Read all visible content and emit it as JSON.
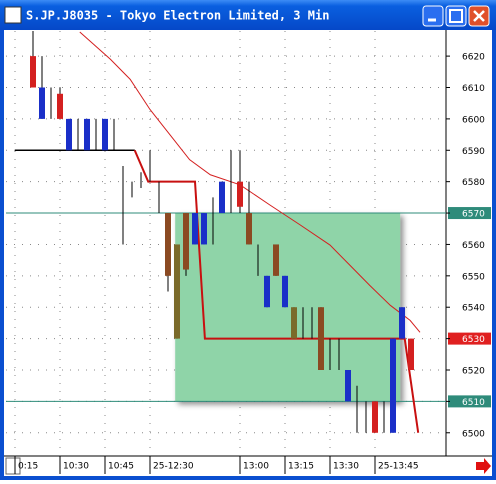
{
  "window_title": "S.JP.J8035 - Tokyo Electron Limited, 3 Min",
  "chart_data": {
    "type": "candlestick",
    "x": [
      2,
      3,
      4,
      5,
      6,
      7,
      8,
      9,
      10,
      11,
      12,
      13,
      14,
      15,
      16,
      17,
      18,
      19,
      20,
      21,
      22,
      23,
      24,
      25,
      26,
      27,
      28,
      29,
      30,
      31,
      32,
      33,
      34,
      35,
      36,
      37,
      38,
      39,
      40,
      41,
      42,
      43,
      44
    ],
    "open": [
      6620,
      6610,
      6605,
      6600,
      6600,
      6595,
      6600,
      6595,
      6600,
      6595,
      6580,
      6580,
      6580,
      6585,
      6575,
      6570,
      6560,
      6570,
      6570,
      6570,
      6570,
      6580,
      6580,
      6572,
      6570,
      6555,
      6550,
      6560,
      6550,
      6540,
      6535,
      6535,
      6540,
      6525,
      6525,
      6520,
      6510,
      6505,
      6500,
      6505,
      6530,
      6540,
      6520
    ],
    "high": [
      6628,
      6620,
      6610,
      6610,
      6600,
      6600,
      6600,
      6600,
      6600,
      6600,
      6585,
      6580,
      6583,
      6590,
      6580,
      6570,
      6560,
      6570,
      6570,
      6570,
      6575,
      6580,
      6590,
      6590,
      6580,
      6560,
      6550,
      6560,
      6550,
      6540,
      6540,
      6540,
      6540,
      6530,
      6530,
      6520,
      6515,
      6510,
      6510,
      6510,
      6530,
      6540,
      6530
    ],
    "low": [
      6610,
      6600,
      6600,
      6600,
      6590,
      6590,
      6590,
      6590,
      6590,
      6590,
      6560,
      6575,
      6578,
      6580,
      6570,
      6545,
      6530,
      6550,
      6560,
      6560,
      6560,
      6570,
      6570,
      6570,
      6560,
      6550,
      6540,
      6550,
      6540,
      6530,
      6530,
      6530,
      6520,
      6520,
      6520,
      6510,
      6500,
      6500,
      6500,
      6500,
      6500,
      6530,
      6520
    ],
    "close": [
      6610,
      6600,
      6605,
      6608,
      6590,
      6595,
      6590,
      6595,
      6590,
      6595,
      6580,
      6580,
      6580,
      6585,
      6575,
      6550,
      6530,
      6552,
      6560,
      6560,
      6570,
      6570,
      6580,
      6580,
      6560,
      6555,
      6540,
      6550,
      6540,
      6530,
      6535,
      6535,
      6520,
      6525,
      6525,
      6510,
      6510,
      6505,
      6510,
      6505,
      6500,
      6530,
      6530
    ],
    "body_colors": [
      "#d42020",
      "#1a2fc8",
      null,
      "#d42020",
      "#1a2fc8",
      null,
      "#1a2fc8",
      null,
      "#1a2fc8",
      null,
      null,
      null,
      null,
      null,
      null,
      "#8b4a22",
      "#7a6a2a",
      "#8b4a22",
      "#1a2fc8",
      "#1a2fc8",
      null,
      "#1a2fc8",
      null,
      "#d42020",
      "#8b4a22",
      null,
      "#1a2fc8",
      "#8b4a22",
      "#1a2fc8",
      "#7a6a2a",
      null,
      null,
      "#8b4a22",
      null,
      null,
      "#1a2fc8",
      null,
      null,
      "#d42020",
      null,
      "#1a2fc8",
      "#1a2fc8",
      "#d42020"
    ],
    "base_line": {
      "color": "#000000",
      "x": [
        0,
        13.3
      ],
      "values": [
        6590,
        6590
      ]
    },
    "step_line": {
      "color": "#c81010",
      "x": [
        13.3,
        14.8,
        20,
        21.1,
        43.3,
        44.8
      ],
      "values": [
        6590,
        6580,
        6580,
        6530,
        6530,
        6500
      ]
    },
    "average_line": {
      "color": "#d42020",
      "x": [
        7.2,
        10.6,
        12.8,
        15,
        17.2,
        19.4,
        21.7,
        25,
        28.3,
        31.7,
        35,
        37.2,
        39.4,
        41.7,
        43.9,
        45
      ],
      "values": [
        6627.7,
        6619,
        6612.6,
        6603,
        6595,
        6587,
        6582.2,
        6579,
        6572.6,
        6566.2,
        6559.8,
        6553.4,
        6547,
        6540.6,
        6535.8,
        6532
      ]
    },
    "zone": {
      "x": [
        17.8,
        42.8
      ],
      "values": [
        6570,
        6510
      ],
      "color": "#8fd4a8"
    },
    "hlines": [
      {
        "value": 6570,
        "color": "#2e8b7a"
      },
      {
        "value": 6510,
        "color": "#2e8b7a"
      }
    ],
    "last_price": {
      "value": 6530,
      "color": "#e02020"
    },
    "xlim": [
      -1,
      48
    ],
    "ylim": [
      6492.6,
      6628
    ],
    "yticks": [
      6500,
      6510,
      6520,
      6530,
      6540,
      6550,
      6560,
      6570,
      6580,
      6590,
      6600,
      6610,
      6620
    ],
    "xticks": [
      {
        "value": 0,
        "label": "0:15"
      },
      {
        "value": 5,
        "label": "10:30"
      },
      {
        "value": 10,
        "label": "10:45"
      },
      {
        "value": 15,
        "label": "25-12:30"
      },
      {
        "value": 25,
        "label": "13:00"
      },
      {
        "value": 30,
        "label": "13:15"
      },
      {
        "value": 35,
        "label": "13:30"
      },
      {
        "value": 40,
        "label": "25-13:45"
      }
    ],
    "grid": true
  }
}
